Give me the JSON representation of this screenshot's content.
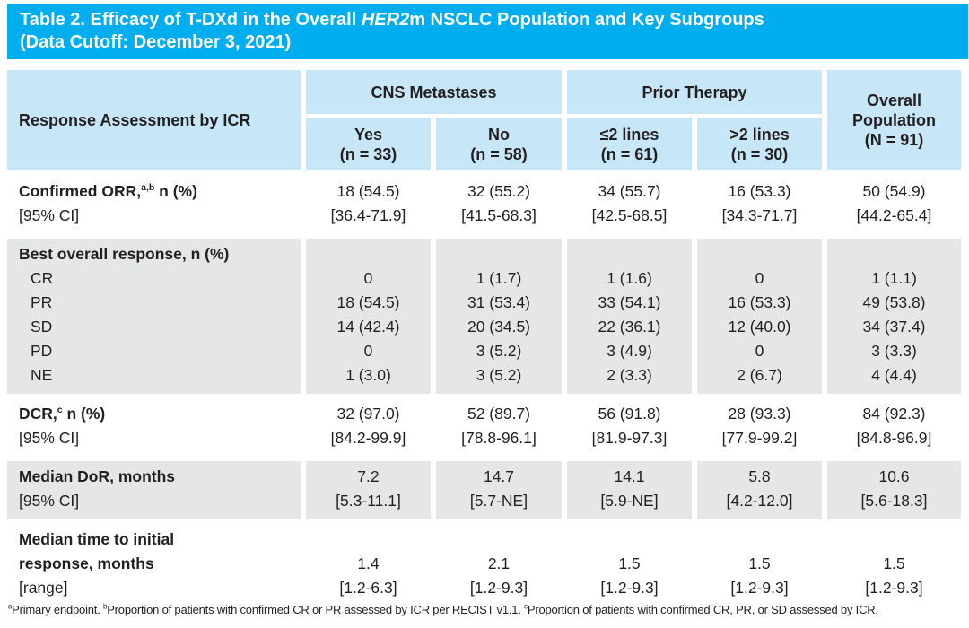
{
  "title": {
    "text_before_italic": "Table 2. Efficacy of T-DXd in the Overall ",
    "italic": "HER2",
    "text_after_italic": "m NSCLC Population and Key Subgroups",
    "line2": "(Data Cutoff: December 3, 2021)"
  },
  "colors": {
    "title_bar_bg": "#00AEEF",
    "header_cell_bg": "#C7E7F8",
    "shaded_row_bg": "#E5E6E7",
    "text": "#231F20",
    "title_text": "#FFFFFF"
  },
  "table": {
    "stub_header": "Response Assessment by ICR",
    "column_groups": [
      {
        "label": "CNS Metastases"
      },
      {
        "label": "Prior Therapy"
      }
    ],
    "columns": [
      {
        "name": "Yes",
        "n": "(n = 33)"
      },
      {
        "name": "No",
        "n": "(n = 58)"
      },
      {
        "name": "≤2 lines",
        "n": "(n = 61)"
      },
      {
        "name": ">2 lines",
        "n": "(n = 30)"
      }
    ],
    "overall_column": {
      "lines": [
        "Overall",
        "Population",
        "(N = 91)"
      ]
    },
    "sections": [
      {
        "shaded": false,
        "rows": [
          {
            "label": "Confirmed ORR,",
            "label_sup": "a,b",
            "label_rest": " n (%)",
            "bold": true,
            "values": [
              "18 (54.5)",
              "32 (55.2)",
              "34 (55.7)",
              "16 (53.3)",
              "50 (54.9)"
            ]
          },
          {
            "label": "[95% CI]",
            "values": [
              "[36.4-71.9]",
              "[41.5-68.3]",
              "[42.5-68.5]",
              "[34.3-71.7]",
              "[44.2-65.4]"
            ]
          }
        ]
      },
      {
        "shaded": true,
        "rows": [
          {
            "label": "Best overall response, n (%)",
            "bold": true,
            "values": [
              "",
              "",
              "",
              "",
              ""
            ]
          },
          {
            "label": "CR",
            "indent": true,
            "values": [
              "0",
              "1 (1.7)",
              "1 (1.6)",
              "0",
              "1 (1.1)"
            ]
          },
          {
            "label": "PR",
            "indent": true,
            "values": [
              "18 (54.5)",
              "31 (53.4)",
              "33 (54.1)",
              "16 (53.3)",
              "49 (53.8)"
            ]
          },
          {
            "label": "SD",
            "indent": true,
            "values": [
              "14 (42.4)",
              "20 (34.5)",
              "22 (36.1)",
              "12 (40.0)",
              "34 (37.4)"
            ]
          },
          {
            "label": "PD",
            "indent": true,
            "values": [
              "0",
              "3 (5.2)",
              "3 (4.9)",
              "0",
              "3 (3.3)"
            ]
          },
          {
            "label": "NE",
            "indent": true,
            "values": [
              "1 (3.0)",
              "3 (5.2)",
              "2 (3.3)",
              "2 (6.7)",
              "4 (4.4)"
            ]
          }
        ]
      },
      {
        "shaded": false,
        "rows": [
          {
            "label": "DCR,",
            "label_sup": "c",
            "label_rest": " n (%)",
            "bold": true,
            "values": [
              "32 (97.0)",
              "52 (89.7)",
              "56 (91.8)",
              "28 (93.3)",
              "84 (92.3)"
            ]
          },
          {
            "label": "[95% CI]",
            "values": [
              "[84.2-99.9]",
              "[78.8-96.1]",
              "[81.9-97.3]",
              "[77.9-99.2]",
              "[84.8-96.9]"
            ]
          }
        ]
      },
      {
        "shaded": true,
        "rows": [
          {
            "label": "Median DoR, months",
            "bold": true,
            "values": [
              "7.2",
              "14.7",
              "14.1",
              "5.8",
              "10.6"
            ]
          },
          {
            "label": "[95% CI]",
            "values": [
              "[5.3-11.1]",
              "[5.7-NE]",
              "[5.9-NE]",
              "[4.2-12.0]",
              "[5.6-18.3]"
            ]
          }
        ]
      },
      {
        "shaded": false,
        "rows": [
          {
            "label": "Median time to initial",
            "bold": true,
            "values": [
              "",
              "",
              "",
              "",
              ""
            ]
          },
          {
            "label": "response, months",
            "bold": true,
            "values": [
              "1.4",
              "2.1",
              "1.5",
              "1.5",
              "1.5"
            ]
          },
          {
            "label": "[range]",
            "values": [
              "[1.2-6.3]",
              "[1.2-9.3]",
              "[1.2-9.3]",
              "[1.2-9.3]",
              "[1.2-9.3]"
            ]
          }
        ]
      }
    ]
  },
  "footnote": {
    "parts": [
      {
        "sup": "a",
        "text": "Primary endpoint. "
      },
      {
        "sup": "b",
        "text": "Proportion of patients with confirmed CR or PR assessed by ICR per RECIST v1.1. "
      },
      {
        "sup": "c",
        "text": "Proportion of patients with confirmed CR, PR, or SD assessed by ICR."
      }
    ]
  }
}
